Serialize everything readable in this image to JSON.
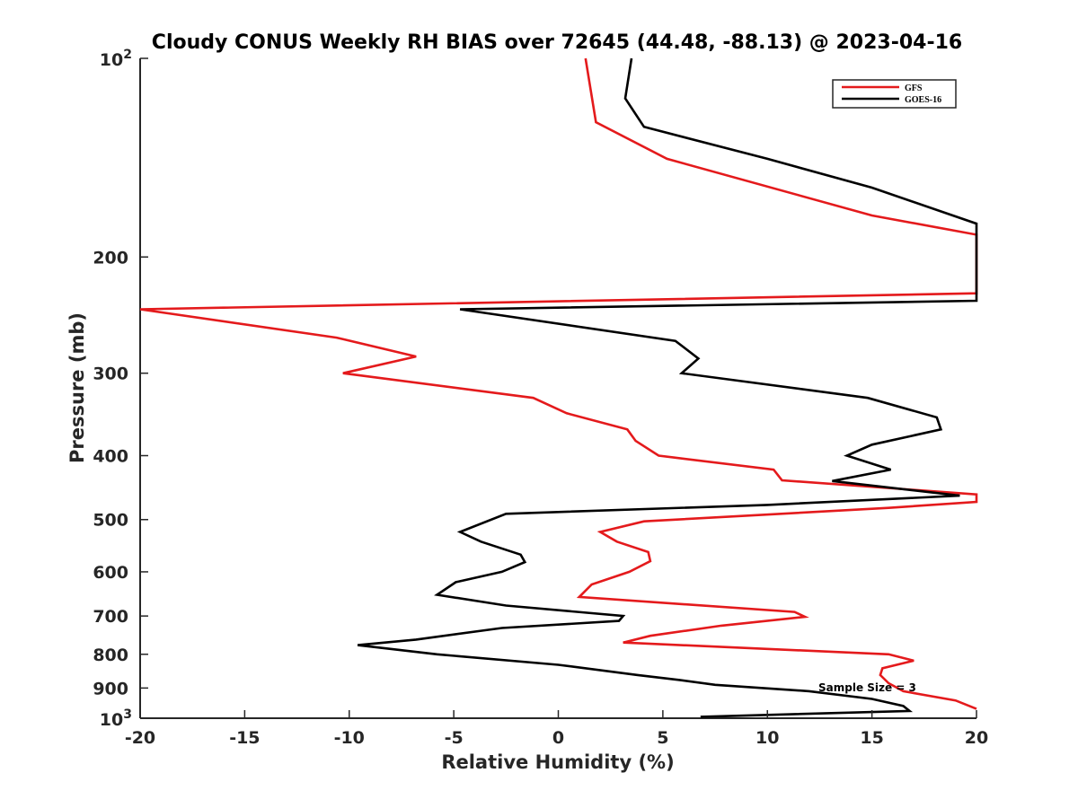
{
  "chart_data": {
    "type": "line",
    "title": "Cloudy CONUS Weekly RH BIAS over 72645 (44.48, -88.13) @ 2023-04-16",
    "xlabel": "Relative Humidity (%)",
    "ylabel": "Pressure (mb)",
    "xlim": [
      -20,
      20
    ],
    "ylim": [
      1000,
      100
    ],
    "yscale": "log",
    "x_ticks": [
      -20,
      -15,
      -10,
      -5,
      0,
      5,
      10,
      15,
      20
    ],
    "x_tick_labels": [
      "-20",
      "-15",
      "-10",
      "-5",
      "0",
      "5",
      "10",
      "15",
      "20"
    ],
    "y_ticks": [
      200,
      300,
      400,
      500,
      600,
      700,
      800,
      900
    ],
    "y_tick_labels": [
      "200",
      "300",
      "400",
      "500",
      "600",
      "700",
      "800",
      "900"
    ],
    "y_end_labels": {
      "top": {
        "base": "10",
        "exp": "2"
      },
      "bottom": {
        "base": "10",
        "exp": "3"
      }
    },
    "legend_position": "top-right",
    "grid": false,
    "annotation": "Sample Size = 3",
    "series": [
      {
        "name": "GFS",
        "color": "#e41a1c",
        "points": [
          [
            1.3,
            100
          ],
          [
            1.8,
            125
          ],
          [
            5.2,
            142
          ],
          [
            15,
            173
          ],
          [
            20,
            185
          ],
          [
            20,
            227
          ],
          [
            -20,
            240
          ],
          [
            -10.6,
            265
          ],
          [
            -6.8,
            283
          ],
          [
            -10.3,
            300
          ],
          [
            -1.2,
            327
          ],
          [
            0.4,
            345
          ],
          [
            3.3,
            365
          ],
          [
            3.7,
            380
          ],
          [
            4.8,
            400
          ],
          [
            10.3,
            420
          ],
          [
            10.7,
            436
          ],
          [
            20,
            458
          ],
          [
            20,
            470
          ],
          [
            15.8,
            480
          ],
          [
            4.1,
            503
          ],
          [
            2.0,
            522
          ],
          [
            2.8,
            540
          ],
          [
            4.3,
            560
          ],
          [
            4.4,
            578
          ],
          [
            3.4,
            600
          ],
          [
            1.6,
            627
          ],
          [
            1.0,
            655
          ],
          [
            11.3,
            690
          ],
          [
            11.8,
            702
          ],
          [
            7.8,
            724
          ],
          [
            4.4,
            750
          ],
          [
            3.1,
            768
          ],
          [
            15.8,
            800
          ],
          [
            17.0,
            818
          ],
          [
            15.5,
            840
          ],
          [
            15.4,
            860
          ],
          [
            15.8,
            885
          ],
          [
            16.5,
            910
          ],
          [
            19,
            940
          ],
          [
            20,
            968
          ]
        ]
      },
      {
        "name": "GOES-16",
        "color": "#000000",
        "points": [
          [
            3.5,
            100
          ],
          [
            3.2,
            115
          ],
          [
            4.1,
            127
          ],
          [
            10,
            142
          ],
          [
            15,
            157
          ],
          [
            20,
            178
          ],
          [
            20,
            233
          ],
          [
            -4.7,
            240
          ],
          [
            5.6,
            268
          ],
          [
            6.7,
            285
          ],
          [
            5.9,
            300
          ],
          [
            14.8,
            327
          ],
          [
            18.1,
            350
          ],
          [
            18.3,
            365
          ],
          [
            15.0,
            385
          ],
          [
            13.8,
            400
          ],
          [
            15.9,
            420
          ],
          [
            13.1,
            437
          ],
          [
            19.2,
            460
          ],
          [
            10.0,
            475
          ],
          [
            -2.5,
            490
          ],
          [
            -4.7,
            522
          ],
          [
            -3.7,
            540
          ],
          [
            -1.8,
            565
          ],
          [
            -1.6,
            580
          ],
          [
            -2.7,
            600
          ],
          [
            -4.9,
            622
          ],
          [
            -5.8,
            650
          ],
          [
            -2.5,
            675
          ],
          [
            3.1,
            700
          ],
          [
            2.9,
            712
          ],
          [
            -2.7,
            730
          ],
          [
            -6.8,
            760
          ],
          [
            -9.6,
            775
          ],
          [
            -5.8,
            800
          ],
          [
            0,
            830
          ],
          [
            3.8,
            860
          ],
          [
            5.8,
            875
          ],
          [
            7.5,
            890
          ],
          [
            12,
            910
          ],
          [
            15,
            935
          ],
          [
            16.5,
            958
          ],
          [
            16.8,
            975
          ],
          [
            6.8,
            995
          ]
        ]
      }
    ]
  }
}
